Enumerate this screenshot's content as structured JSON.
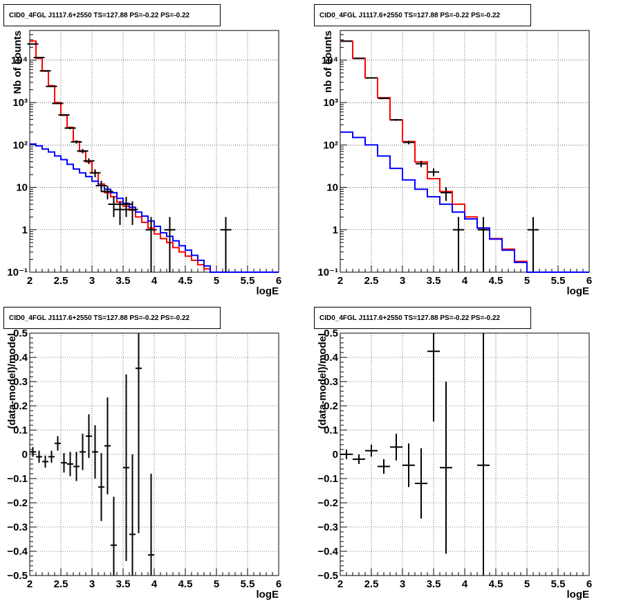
{
  "chart_data": [
    {
      "type": "line",
      "title": "CID0_4FGL J1117.6+2550 TS=127.88 PS=-0.22 PS=-0.22",
      "xlabel": "logE",
      "ylabel": "Nb of counts",
      "xlim": [
        2,
        6
      ],
      "ylim": [
        0.1,
        50000
      ],
      "yscale": "log",
      "grid": true,
      "xticks": [
        "2",
        "2.5",
        "3",
        "3.5",
        "4",
        "4.5",
        "5",
        "5.5",
        "6"
      ],
      "yticks": [
        {
          "v": 0.1,
          "t": "10⁻¹"
        },
        {
          "v": 1,
          "t": "1"
        },
        {
          "v": 10,
          "t": "10"
        },
        {
          "v": 100,
          "t": "10²"
        },
        {
          "v": 1000,
          "t": "10³"
        },
        {
          "v": 10000,
          "t": "10⁴"
        }
      ],
      "bin_edges": [
        2.0,
        2.1,
        2.2,
        2.3,
        2.4,
        2.5,
        2.6,
        2.7,
        2.8,
        2.9,
        3.0,
        3.1,
        3.2,
        3.3,
        3.4,
        3.5,
        3.6,
        3.7,
        3.8,
        3.9,
        4.0,
        4.1,
        4.2,
        4.3,
        4.4,
        4.5,
        4.6,
        4.7,
        4.8,
        4.9,
        5.0,
        5.1,
        5.2,
        5.3,
        5.4,
        5.5,
        5.6,
        5.7,
        5.8,
        5.9,
        6.0
      ],
      "series": [
        {
          "color": "#ff0000",
          "values": [
            28000,
            11000,
            5500,
            2500,
            1000,
            500,
            260,
            120,
            70,
            40,
            22,
            12,
            7.5,
            6,
            4.5,
            3.6,
            2.9,
            2.0,
            1.5,
            1.1,
            0.8,
            0.62,
            0.5,
            0.38,
            0.3,
            0.24,
            0.19,
            0.15,
            0.12,
            0.1,
            0.1,
            0.1,
            0.1,
            0.1,
            0.1,
            0.1,
            0.1,
            0.1,
            0.1,
            0.1
          ]
        },
        {
          "color": "#0000ff",
          "values": [
            105,
            95,
            80,
            68,
            55,
            45,
            35,
            27,
            22,
            18,
            14,
            11,
            9,
            7.5,
            5.5,
            4.2,
            3.4,
            2.6,
            2.1,
            1.6,
            1.2,
            0.85,
            0.7,
            0.55,
            0.42,
            0.33,
            0.25,
            0.19,
            0.14,
            0.1,
            0.1,
            0.1,
            0.1,
            0.1,
            0.1,
            0.1,
            0.1,
            0.1,
            0.1,
            0.1
          ]
        }
      ],
      "points": [
        {
          "x": 2.05,
          "y": 24000,
          "yerr": 150
        },
        {
          "x": 2.15,
          "y": 11500,
          "yerr": 110
        },
        {
          "x": 2.25,
          "y": 5600,
          "yerr": 75
        },
        {
          "x": 2.35,
          "y": 2400,
          "yerr": 50
        },
        {
          "x": 2.45,
          "y": 950,
          "yerr": 31
        },
        {
          "x": 2.55,
          "y": 510,
          "yerr": 23
        },
        {
          "x": 2.65,
          "y": 250,
          "yerr": 16
        },
        {
          "x": 2.75,
          "y": 118,
          "yerr": 11
        },
        {
          "x": 2.85,
          "y": 72,
          "yerr": 8.5
        },
        {
          "x": 2.95,
          "y": 42,
          "yerr": 6.5
        },
        {
          "x": 3.05,
          "y": 22,
          "yerr": 4.7
        },
        {
          "x": 3.15,
          "y": 11,
          "yerr": 3.3
        },
        {
          "x": 3.25,
          "y": 8,
          "yerr": 2.8
        },
        {
          "x": 3.35,
          "y": 4,
          "yerr": 2
        },
        {
          "x": 3.45,
          "y": 3,
          "yerr": 1.7
        },
        {
          "x": 3.55,
          "y": 4,
          "yerr": 2
        },
        {
          "x": 3.65,
          "y": 3,
          "yerr": 1.7
        },
        {
          "x": 3.95,
          "y": 1,
          "yerr": 1
        },
        {
          "x": 4.25,
          "y": 1,
          "yerr": 1
        },
        {
          "x": 5.15,
          "y": 1,
          "yerr": 1
        }
      ]
    },
    {
      "type": "line",
      "title": "CID0_4FGL J1117.6+2550 TS=127.88 PS=-0.22 PS=-0.22",
      "xlabel": "logE",
      "ylabel": "nb of counts",
      "xlim": [
        2,
        6
      ],
      "ylim": [
        0.1,
        50000
      ],
      "yscale": "log",
      "grid": true,
      "xticks": [
        "2",
        "2.5",
        "3",
        "3.5",
        "4",
        "4.5",
        "5",
        "5.5",
        "6"
      ],
      "yticks": [
        {
          "v": 0.1,
          "t": "10⁻¹"
        },
        {
          "v": 1,
          "t": "1"
        },
        {
          "v": 10,
          "t": "10"
        },
        {
          "v": 100,
          "t": "10²"
        },
        {
          "v": 1000,
          "t": "10³"
        },
        {
          "v": 10000,
          "t": "10⁴"
        }
      ],
      "bin_edges": [
        2.0,
        2.2,
        2.4,
        2.6,
        2.8,
        3.0,
        3.2,
        3.4,
        3.6,
        3.8,
        4.0,
        4.2,
        4.4,
        4.6,
        4.8,
        5.0,
        5.2,
        5.4,
        5.6,
        5.8,
        6.0
      ],
      "series": [
        {
          "color": "#ff0000",
          "values": [
            28000,
            11000,
            3800,
            1300,
            390,
            120,
            40,
            16,
            8,
            4,
            2,
            1.1,
            0.62,
            0.35,
            0.18,
            0.1,
            0.1,
            0.1,
            0.1,
            0.1
          ]
        },
        {
          "color": "#0000ff",
          "values": [
            200,
            150,
            100,
            55,
            28,
            15,
            9,
            6,
            4,
            2.6,
            1.8,
            1.1,
            0.6,
            0.33,
            0.17,
            0.1,
            0.1,
            0.1,
            0.1,
            0.1
          ]
        }
      ],
      "points": [
        {
          "x": 2.1,
          "y": 28000,
          "yerr": 170
        },
        {
          "x": 2.3,
          "y": 11000,
          "yerr": 105
        },
        {
          "x": 2.5,
          "y": 3800,
          "yerr": 62
        },
        {
          "x": 2.7,
          "y": 1250,
          "yerr": 35
        },
        {
          "x": 2.9,
          "y": 390,
          "yerr": 20
        },
        {
          "x": 3.1,
          "y": 115,
          "yerr": 11
        },
        {
          "x": 3.3,
          "y": 36,
          "yerr": 6
        },
        {
          "x": 3.5,
          "y": 23,
          "yerr": 4.8
        },
        {
          "x": 3.7,
          "y": 7.5,
          "yerr": 2.7
        },
        {
          "x": 3.9,
          "y": 1,
          "yerr": 1
        },
        {
          "x": 4.3,
          "y": 1,
          "yerr": 1
        },
        {
          "x": 5.1,
          "y": 1,
          "yerr": 1
        }
      ]
    },
    {
      "type": "scatter",
      "title": "CID0_4FGL J1117.6+2550 TS=127.88 PS=-0.22 PS=-0.22",
      "xlabel": "logE",
      "ylabel": "(data-model)/model",
      "xlim": [
        2,
        6
      ],
      "ylim": [
        -0.5,
        0.5
      ],
      "grid": true,
      "xticks": [
        "2",
        "2.5",
        "3",
        "3.5",
        "4",
        "4.5",
        "5",
        "5.5",
        "6"
      ],
      "yticks": [
        {
          "v": -0.5,
          "t": "−0.5"
        },
        {
          "v": -0.4,
          "t": "−0.4"
        },
        {
          "v": -0.3,
          "t": "−0.3"
        },
        {
          "v": -0.2,
          "t": "−0.2"
        },
        {
          "v": -0.1,
          "t": "−0.1"
        },
        {
          "v": 0,
          "t": "0"
        },
        {
          "v": 0.1,
          "t": "0.1"
        },
        {
          "v": 0.2,
          "t": "0.2"
        },
        {
          "v": 0.3,
          "t": "0.3"
        },
        {
          "v": 0.4,
          "t": "0.4"
        },
        {
          "v": 0.5,
          "t": "0.5"
        }
      ],
      "points": [
        {
          "x": 2.05,
          "y": 0.01,
          "yerr": 0.02,
          "xerr": 0.05
        },
        {
          "x": 2.15,
          "y": -0.01,
          "yerr": 0.025,
          "xerr": 0.05
        },
        {
          "x": 2.25,
          "y": -0.03,
          "yerr": 0.025,
          "xerr": 0.05
        },
        {
          "x": 2.35,
          "y": -0.01,
          "yerr": 0.025,
          "xerr": 0.05
        },
        {
          "x": 2.45,
          "y": 0.045,
          "yerr": 0.03,
          "xerr": 0.05
        },
        {
          "x": 2.55,
          "y": -0.035,
          "yerr": 0.04,
          "xerr": 0.05
        },
        {
          "x": 2.65,
          "y": -0.04,
          "yerr": 0.05,
          "xerr": 0.05
        },
        {
          "x": 2.75,
          "y": -0.05,
          "yerr": 0.06,
          "xerr": 0.05
        },
        {
          "x": 2.85,
          "y": 0.01,
          "yerr": 0.075,
          "xerr": 0.05
        },
        {
          "x": 2.95,
          "y": 0.075,
          "yerr": 0.09,
          "xerr": 0.05
        },
        {
          "x": 3.05,
          "y": 0.01,
          "yerr": 0.11,
          "xerr": 0.05
        },
        {
          "x": 3.15,
          "y": -0.135,
          "yerr": 0.14,
          "xerr": 0.05
        },
        {
          "x": 3.25,
          "y": 0.035,
          "yerr": 0.2,
          "xerr": 0.05
        },
        {
          "x": 3.35,
          "y": -0.375,
          "yerr": 0.2,
          "xerr": 0.05
        },
        {
          "x": 3.55,
          "y": -0.055,
          "yerr": 0.385,
          "xerr": 0.05
        },
        {
          "x": 3.65,
          "y": -0.33,
          "yerr": 0.33,
          "xerr": 0.05
        },
        {
          "x": 3.75,
          "y": 0.355,
          "yerr": 0.68,
          "xerr": 0.05
        },
        {
          "x": 3.95,
          "y": -0.415,
          "yerr": 0.335,
          "xerr": 0.05
        }
      ]
    },
    {
      "type": "scatter",
      "title": "CID0_4FGL J1117.6+2550 TS=127.88 PS=-0.22 PS=-0.22",
      "xlabel": "logE",
      "ylabel": "(data-model)/model",
      "xlim": [
        2,
        6
      ],
      "ylim": [
        -0.5,
        0.5
      ],
      "grid": true,
      "xticks": [
        "2",
        "2.5",
        "3",
        "3.5",
        "4",
        "4.5",
        "5",
        "5.5",
        "6"
      ],
      "yticks": [
        {
          "v": -0.5,
          "t": "−0.5"
        },
        {
          "v": -0.4,
          "t": "−0.4"
        },
        {
          "v": -0.3,
          "t": "−0.3"
        },
        {
          "v": -0.2,
          "t": "−0.2"
        },
        {
          "v": -0.1,
          "t": "−0.1"
        },
        {
          "v": 0,
          "t": "0"
        },
        {
          "v": 0.1,
          "t": "0.1"
        },
        {
          "v": 0.2,
          "t": "0.2"
        },
        {
          "v": 0.3,
          "t": "0.3"
        },
        {
          "v": 0.4,
          "t": "0.4"
        },
        {
          "v": 0.5,
          "t": "0.5"
        }
      ],
      "points": [
        {
          "x": 2.1,
          "y": 0.0,
          "yerr": 0.02,
          "xerr": 0.1
        },
        {
          "x": 2.3,
          "y": -0.02,
          "yerr": 0.02,
          "xerr": 0.1
        },
        {
          "x": 2.5,
          "y": 0.015,
          "yerr": 0.025,
          "xerr": 0.1
        },
        {
          "x": 2.7,
          "y": -0.05,
          "yerr": 0.03,
          "xerr": 0.1
        },
        {
          "x": 2.9,
          "y": 0.03,
          "yerr": 0.055,
          "xerr": 0.1
        },
        {
          "x": 3.1,
          "y": -0.045,
          "yerr": 0.09,
          "xerr": 0.1
        },
        {
          "x": 3.3,
          "y": -0.12,
          "yerr": 0.145,
          "xerr": 0.1
        },
        {
          "x": 3.5,
          "y": 0.425,
          "yerr": 0.29,
          "xerr": 0.1
        },
        {
          "x": 3.7,
          "y": -0.055,
          "yerr": 0.355,
          "xerr": 0.1
        },
        {
          "x": 4.3,
          "y": -0.045,
          "yerr": 0.75,
          "xerr": 0.1
        }
      ]
    }
  ]
}
